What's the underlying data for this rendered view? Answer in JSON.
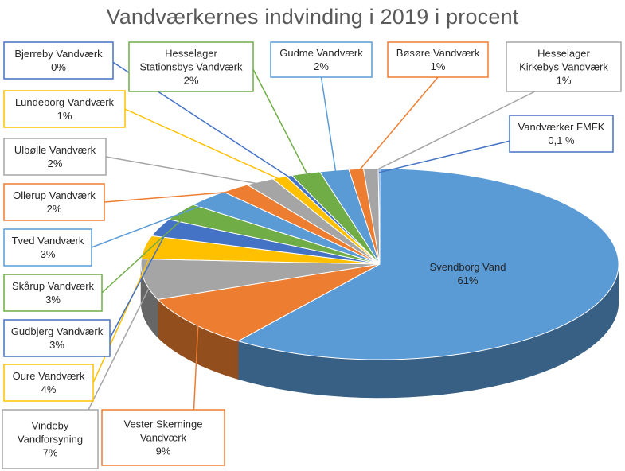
{
  "chart_data": {
    "type": "pie",
    "title": "Vandværkernes indvinding i 2019 i procent",
    "slices": [
      {
        "name": "Svendborg Vand",
        "value_label": "61%",
        "value": 61,
        "color": "#5B9BD5"
      },
      {
        "name": "Vester Skerninge Vandværk",
        "value_label": "9%",
        "value": 9,
        "color": "#ED7D31"
      },
      {
        "name": "Vindeby Vandforsyning",
        "value_label": "7%",
        "value": 7,
        "color": "#A5A5A5"
      },
      {
        "name": "Oure Vandværk",
        "value_label": "4%",
        "value": 4,
        "color": "#FFC000"
      },
      {
        "name": "Gudbjerg Vandværk",
        "value_label": "3%",
        "value": 3,
        "color": "#4472C4"
      },
      {
        "name": "Skårup Vandværk",
        "value_label": "3%",
        "value": 3,
        "color": "#70AD47"
      },
      {
        "name": "Tved Vandværk",
        "value_label": "3%",
        "value": 3,
        "color": "#5B9BD5"
      },
      {
        "name": "Ollerup Vandværk",
        "value_label": "2%",
        "value": 2,
        "color": "#ED7D31"
      },
      {
        "name": "Ulbølle Vandværk",
        "value_label": "2%",
        "value": 2,
        "color": "#A5A5A5"
      },
      {
        "name": "Lundeborg Vandværk",
        "value_label": "1%",
        "value": 1,
        "color": "#FFC000"
      },
      {
        "name": "Bjerreby Vandværk",
        "value_label": "0%",
        "value": 0.4,
        "color": "#4472C4"
      },
      {
        "name": "Hesselager Stationsbys Vandværk",
        "value_label": "2%",
        "value": 2,
        "color": "#70AD47"
      },
      {
        "name": "Gudme Vandværk",
        "value_label": "2%",
        "value": 2,
        "color": "#5B9BD5"
      },
      {
        "name": "Bøsøre Vandværk",
        "value_label": "1%",
        "value": 1,
        "color": "#ED7D31"
      },
      {
        "name": "Hesselager Kirkebys Vandværk",
        "value_label": "1%",
        "value": 1,
        "color": "#A5A5A5"
      },
      {
        "name": "Vandværker FMFK",
        "value_label": "0,1 %",
        "value": 0.1,
        "color": "#4472C4"
      }
    ]
  }
}
